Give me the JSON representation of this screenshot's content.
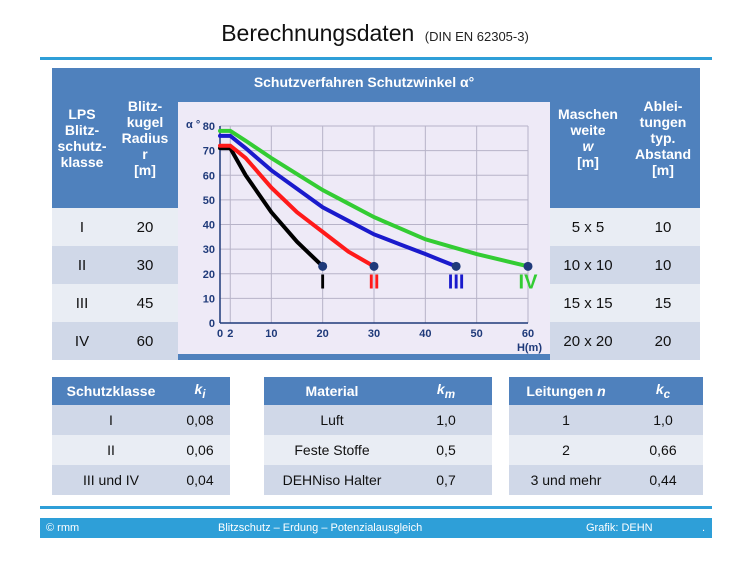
{
  "title": {
    "main": "Berechnungsdaten",
    "sub": "(DIN EN 62305-3)"
  },
  "main_table": {
    "headers": {
      "lps_class": [
        "LPS",
        "Blitz-",
        "schutz-",
        "klasse"
      ],
      "radius": [
        "Blitz-",
        "kugel",
        "Radius",
        "r",
        "[m]"
      ],
      "protection": "Schutzverfahren Schutzwinkel α°",
      "mesh": [
        "Maschen",
        "weite",
        "w",
        "[m]"
      ],
      "spacing": [
        "Ablei-",
        "tungen",
        "typ.",
        "Abstand",
        "[m]"
      ]
    },
    "rows": [
      {
        "class": "I",
        "radius": "20",
        "mesh": "5 x 5",
        "spacing": "10"
      },
      {
        "class": "II",
        "radius": "30",
        "mesh": "10 x 10",
        "spacing": "10"
      },
      {
        "class": "III",
        "radius": "45",
        "mesh": "15 x 15",
        "spacing": "15"
      },
      {
        "class": "IV",
        "radius": "60",
        "mesh": "20 x 20",
        "spacing": "20"
      }
    ]
  },
  "chart_data": {
    "type": "line",
    "ylabel": "α °",
    "xlabel": "H(m)",
    "xlim": [
      0,
      60
    ],
    "ylim": [
      0,
      80
    ],
    "x_ticks": [
      "0",
      "2",
      "10",
      "20",
      "30",
      "40",
      "50",
      "60"
    ],
    "y_ticks": [
      "0",
      "10",
      "20",
      "30",
      "40",
      "50",
      "60",
      "70",
      "80"
    ],
    "series": [
      {
        "name": "I",
        "color": "#000000",
        "points": [
          [
            0,
            71
          ],
          [
            2,
            71
          ],
          [
            5,
            60
          ],
          [
            10,
            45
          ],
          [
            15,
            33
          ],
          [
            20,
            23
          ]
        ]
      },
      {
        "name": "II",
        "color": "#ff1a1a",
        "points": [
          [
            0,
            72
          ],
          [
            2,
            72
          ],
          [
            5,
            67
          ],
          [
            10,
            55
          ],
          [
            15,
            45
          ],
          [
            20,
            37
          ],
          [
            25,
            29
          ],
          [
            30,
            23
          ]
        ]
      },
      {
        "name": "III",
        "color": "#1a1acc",
        "points": [
          [
            0,
            76
          ],
          [
            2,
            76
          ],
          [
            5,
            71
          ],
          [
            10,
            62
          ],
          [
            20,
            47
          ],
          [
            30,
            36
          ],
          [
            40,
            28
          ],
          [
            46,
            23
          ]
        ]
      },
      {
        "name": "IV",
        "color": "#33cc33",
        "points": [
          [
            0,
            78
          ],
          [
            2,
            78
          ],
          [
            5,
            74
          ],
          [
            10,
            67
          ],
          [
            20,
            54
          ],
          [
            30,
            43
          ],
          [
            40,
            34
          ],
          [
            50,
            28
          ],
          [
            60,
            23
          ]
        ]
      }
    ]
  },
  "ki_table": {
    "headers": [
      "Schutzklasse",
      "k"
    ],
    "sub": "i",
    "rows": [
      [
        "I",
        "0,08"
      ],
      [
        "II",
        "0,06"
      ],
      [
        "III und IV",
        "0,04"
      ]
    ]
  },
  "km_table": {
    "headers": [
      "Material",
      "k"
    ],
    "sub": "m",
    "rows": [
      [
        "Luft",
        "1,0"
      ],
      [
        "Feste Stoffe",
        "0,5"
      ],
      [
        "DEHNiso Halter",
        "0,7"
      ]
    ]
  },
  "kc_table": {
    "headers": [
      "Leitungen",
      "n",
      "k"
    ],
    "sub": "c",
    "rows": [
      [
        "1",
        "1,0"
      ],
      [
        "2",
        "0,66"
      ],
      [
        "3 und mehr",
        "0,44"
      ]
    ]
  },
  "footer": {
    "left": "© rmm",
    "center": "Blitzschutz – Erdung – Potenzialausgleich",
    "right": "Grafik: DEHN",
    "dot": "."
  }
}
